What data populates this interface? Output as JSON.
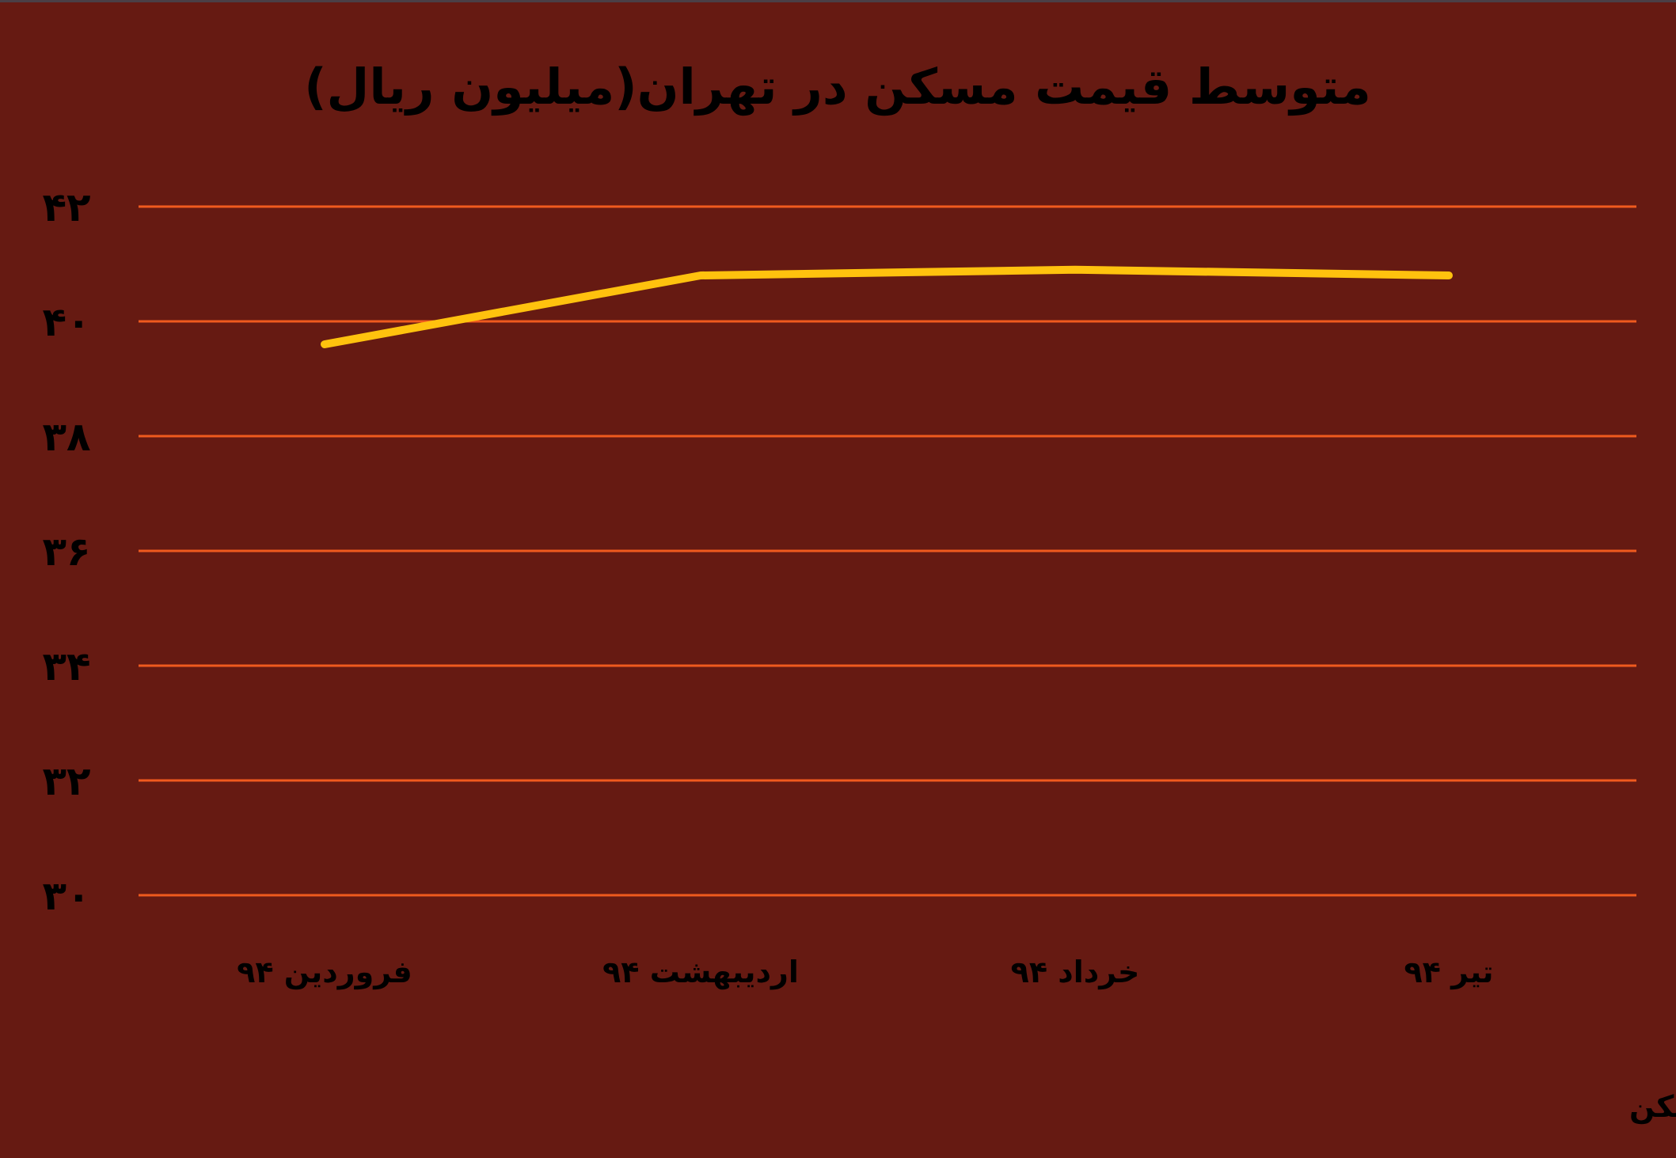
{
  "chart_data": {
    "type": "line",
    "title": "متوسط قیمت مسکن در تهران(میلیون ریال)",
    "categories": [
      "فروردین ۹۴",
      "اردیبهشت ۹۴",
      "خرداد ۹۴",
      "تیر ۹۴"
    ],
    "series": [
      {
        "values": [
          39.6,
          40.8,
          40.9,
          40.8
        ]
      }
    ],
    "ylim": [
      30,
      42
    ],
    "yticks": [
      30,
      32,
      34,
      36,
      38,
      40,
      42
    ],
    "ytick_labels": [
      "۳۰",
      "۳۲",
      "۳۴",
      "۳۶",
      "۳۸",
      "۴۰",
      "۴۲"
    ],
    "grid": true,
    "legend": "none",
    "source": "منبع: دفتر برنامه‌ریزی و اقتصاد مسکن"
  },
  "colors": {
    "background": "#661A12",
    "gridline": "#F05A1E",
    "line": "#FFC20E",
    "text": "#000000"
  }
}
